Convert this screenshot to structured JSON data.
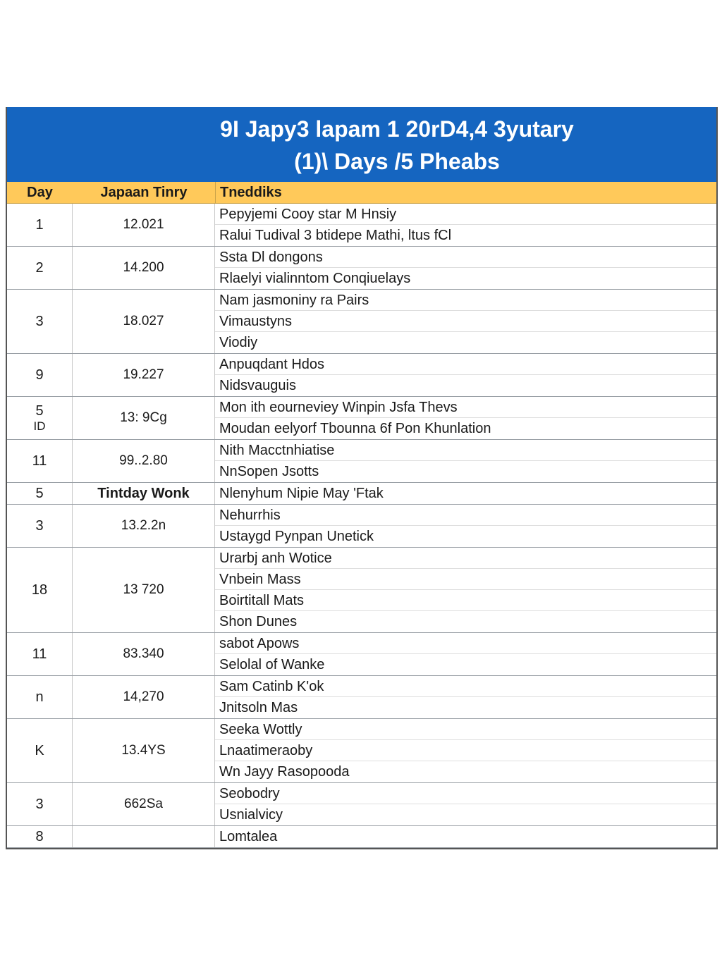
{
  "title_line1": "9I Japy3 lapam 1 20rD4,4 3yutary",
  "title_line2": "(1)\\ Days /5 Pheabs",
  "headers": {
    "day": "Day",
    "time": "Japaan Tinry",
    "items": "Tneddiks"
  },
  "rows": [
    {
      "day": "1",
      "time": "12.021",
      "items": [
        "Pepyjemi Cooy star M Hnsiy",
        "Ralui Tudival 3 btidepe Mathi, ltus fCl"
      ]
    },
    {
      "day": "2",
      "time": "14.200",
      "items": [
        "Ssta Dl dongons",
        "Rlaelyi vialinntom Conqiuelays"
      ]
    },
    {
      "day": "3",
      "time": "18.027",
      "items": [
        "Nam jasmoniny ra Pairs",
        "Vimaustyns",
        "Viodiy"
      ]
    },
    {
      "day": "9",
      "time": "19.227",
      "items": [
        "Anpuqdant Hdos",
        "Nidsvauguis"
      ]
    },
    {
      "day": "5",
      "day2": "ID",
      "time": "13: 9Cg",
      "items": [
        "Mon ith eourneviey Winpin Jsfa Thevs",
        "Moudan eelyorf Tbounna 6f Pon Khunlation"
      ]
    },
    {
      "day": "11",
      "time": "99..2.80",
      "items": [
        "Nith Macctnhiatise",
        "NnSopen Jsotts"
      ]
    },
    {
      "day": "5",
      "time": "Tintday Wonk",
      "bold": true,
      "items": [
        "Nlenyhum Nipie May 'Ftak"
      ]
    },
    {
      "day": "3",
      "time": "13.2.2n",
      "items": [
        "Nehurrhis",
        "Ustaygd Pynpan Unetick"
      ]
    },
    {
      "day": "18",
      "time": "13 720",
      "items": [
        "Urarbj anh Wotice",
        "Vnbein Mass",
        "Boirtitall Mats",
        "Shon Dunes"
      ]
    },
    {
      "day": "11",
      "time": "83.340",
      "items": [
        "sabot Apows",
        "Selolal of Wanke"
      ]
    },
    {
      "day": "n",
      "time": "14,270",
      "items": [
        "Sam Catinb K'ok",
        "Jnitsoln Mas"
      ]
    },
    {
      "day": "K",
      "time": "13.4YS",
      "items": [
        "Seeka Wottly",
        "Lnaatimeraoby",
        "Wn Jayy Rasopooda"
      ]
    },
    {
      "day": "3",
      "time": "662Sa",
      "items": [
        "Seobodry",
        "Usnialvicy"
      ]
    },
    {
      "day": "8",
      "time": "",
      "items": [
        "Lomtalea"
      ]
    }
  ]
}
